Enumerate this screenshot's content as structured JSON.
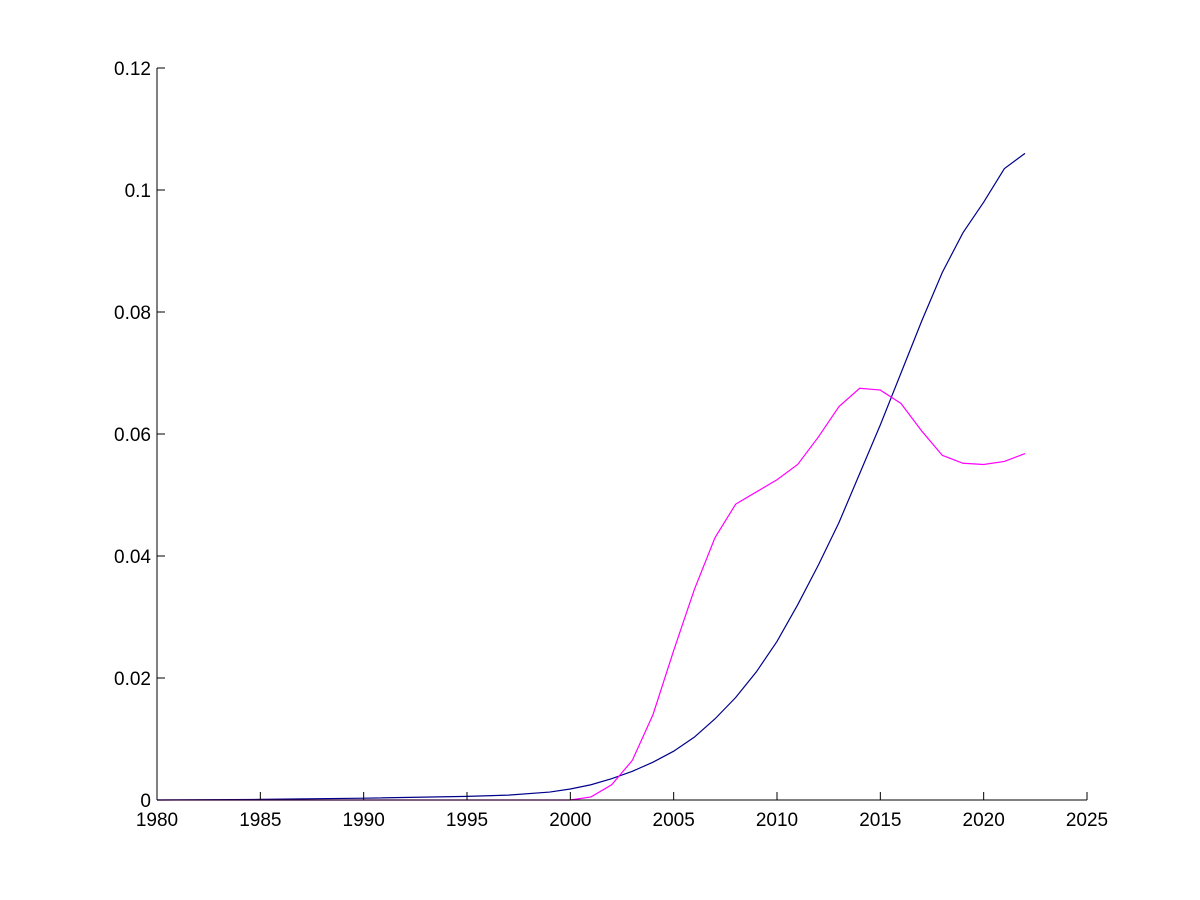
{
  "chart_data": {
    "type": "line",
    "title": "",
    "xlabel": "",
    "ylabel": "",
    "xlim": [
      1980,
      2025
    ],
    "ylim": [
      0,
      0.12
    ],
    "grid": false,
    "xticks": [
      {
        "value": 1980,
        "label": "1980"
      },
      {
        "value": 1985,
        "label": "1985"
      },
      {
        "value": 1990,
        "label": "1990"
      },
      {
        "value": 1995,
        "label": "1995"
      },
      {
        "value": 2000,
        "label": "2000"
      },
      {
        "value": 2005,
        "label": "2005"
      },
      {
        "value": 2010,
        "label": "2010"
      },
      {
        "value": 2015,
        "label": "2015"
      },
      {
        "value": 2020,
        "label": "2020"
      },
      {
        "value": 2025,
        "label": "2025"
      }
    ],
    "yticks": [
      {
        "value": 0,
        "label": "0"
      },
      {
        "value": 0.02,
        "label": "0.02"
      },
      {
        "value": 0.04,
        "label": "0.04"
      },
      {
        "value": 0.06,
        "label": "0.06"
      },
      {
        "value": 0.08,
        "label": "0.08"
      },
      {
        "value": 0.1,
        "label": "0.1"
      },
      {
        "value": 0.12,
        "label": "0.12"
      }
    ],
    "series": [
      {
        "color": "#00008b",
        "x": [
          1980,
          1985,
          1990,
          1995,
          1997,
          1999,
          2000,
          2001,
          2002,
          2003,
          2004,
          2005,
          2006,
          2007,
          2008,
          2009,
          2010,
          2011,
          2012,
          2013,
          2014,
          2015,
          2016,
          2017,
          2018,
          2019,
          2020,
          2021,
          2022
        ],
        "y": [
          0,
          0.0001,
          0.0003,
          0.0006,
          0.0008,
          0.0013,
          0.0018,
          0.0025,
          0.0035,
          0.0047,
          0.0062,
          0.008,
          0.0103,
          0.0133,
          0.0168,
          0.021,
          0.026,
          0.032,
          0.0385,
          0.0455,
          0.0535,
          0.0615,
          0.07,
          0.0785,
          0.0865,
          0.093,
          0.098,
          0.1035,
          0.106
        ]
      },
      {
        "color": "#ff00ff",
        "x": [
          1980,
          1999,
          2000,
          2001,
          2002,
          2003,
          2004,
          2005,
          2006,
          2007,
          2008,
          2009,
          2010,
          2011,
          2012,
          2013,
          2014,
          2015,
          2016,
          2017,
          2018,
          2019,
          2020,
          2021,
          2022
        ],
        "y": [
          0,
          0,
          0,
          0.0005,
          0.0025,
          0.0065,
          0.014,
          0.0245,
          0.0345,
          0.043,
          0.0485,
          0.0505,
          0.0525,
          0.055,
          0.0595,
          0.0645,
          0.0675,
          0.0672,
          0.065,
          0.0605,
          0.0565,
          0.0552,
          0.055,
          0.0555,
          0.0568
        ]
      }
    ]
  }
}
